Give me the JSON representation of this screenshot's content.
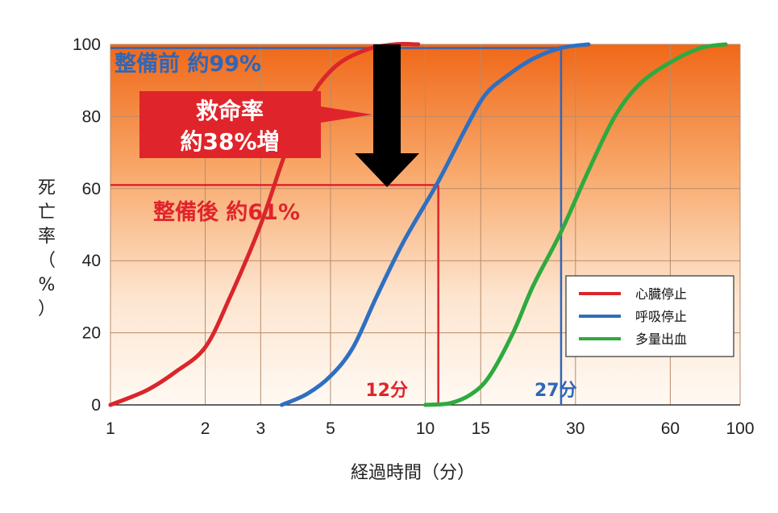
{
  "chart_data": {
    "type": "line",
    "xscale": "log",
    "xlim": [
      1,
      100
    ],
    "ylim": [
      0,
      100
    ],
    "xticks": [
      "1",
      "2",
      "3",
      "5",
      "10",
      "15",
      "30",
      "60",
      "100"
    ],
    "xtick_values": [
      1,
      2,
      3,
      5,
      10,
      15,
      30,
      60,
      100
    ],
    "yticks": [
      "0",
      "20",
      "40",
      "60",
      "80",
      "100"
    ],
    "ytick_values": [
      0,
      20,
      40,
      60,
      80,
      100
    ],
    "xlabel": "経過時間（分）",
    "ylabel_chars": [
      "死",
      "亡",
      "率",
      "（",
      "%",
      "）"
    ],
    "grid": true,
    "legend_position": "bottom-right",
    "series": [
      {
        "name": "心臓停止",
        "color": "#d9262c",
        "points": [
          [
            1,
            0
          ],
          [
            1.3,
            4
          ],
          [
            1.6,
            9
          ],
          [
            2,
            16
          ],
          [
            2.4,
            30
          ],
          [
            3,
            50
          ],
          [
            3.6,
            70
          ],
          [
            4.3,
            85
          ],
          [
            5.2,
            94
          ],
          [
            6.5,
            98.5
          ],
          [
            8,
            100
          ],
          [
            9.5,
            100
          ]
        ]
      },
      {
        "name": "呼吸停止",
        "color": "#2f6fc1",
        "points": [
          [
            3.5,
            0
          ],
          [
            4.2,
            3
          ],
          [
            5,
            8
          ],
          [
            5.9,
            16
          ],
          [
            7,
            30
          ],
          [
            8.5,
            45
          ],
          [
            11,
            62
          ],
          [
            13.5,
            77
          ],
          [
            15.5,
            86
          ],
          [
            18,
            91
          ],
          [
            22,
            96
          ],
          [
            27,
            99
          ],
          [
            33,
            100
          ]
        ]
      },
      {
        "name": "多量出血",
        "color": "#2eaa3f",
        "points": [
          [
            10,
            0
          ],
          [
            12,
            0.5
          ],
          [
            14,
            3
          ],
          [
            16,
            8
          ],
          [
            19,
            20
          ],
          [
            22,
            33
          ],
          [
            27,
            48
          ],
          [
            33,
            65
          ],
          [
            40,
            80
          ],
          [
            48,
            89
          ],
          [
            60,
            95
          ],
          [
            75,
            99
          ],
          [
            90,
            100
          ]
        ]
      }
    ],
    "annotations": {
      "before_label": "整備前 約99%",
      "after_label": "整備後 約61%",
      "box_line1": "救命率",
      "box_line2": "約38%増",
      "min12_label": "12分",
      "min27_label": "27分",
      "before_value": 99,
      "after_value": 61,
      "min12_x": 11,
      "min27_x": 27
    },
    "colors": {
      "red": "#e0242b",
      "blue": "#2f66b8",
      "arrow": "#000000",
      "bg_top": "#f26a1b",
      "bg_bottom": "#fffaf3"
    }
  }
}
